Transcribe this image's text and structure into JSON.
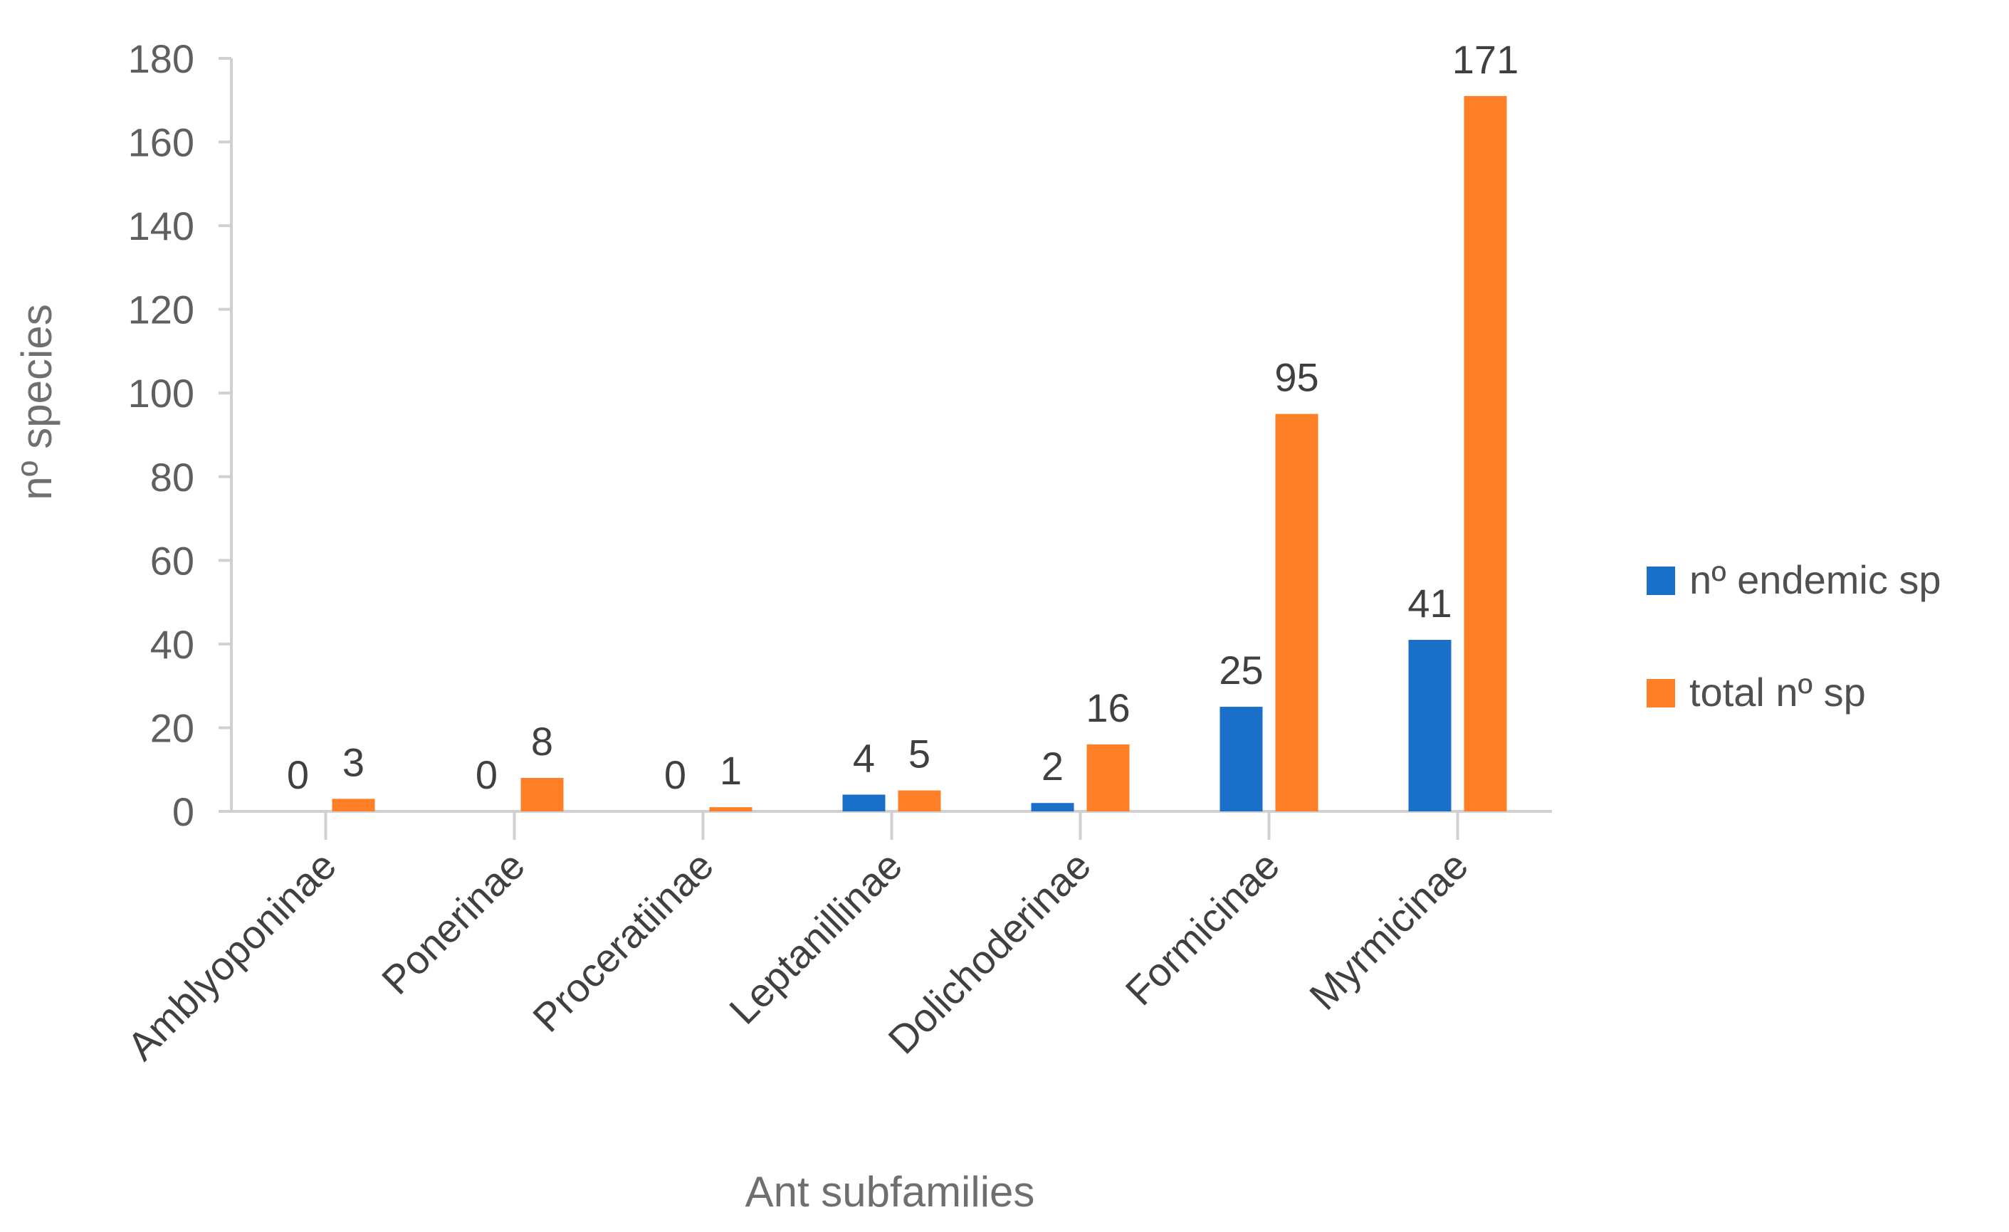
{
  "chart_data": {
    "type": "bar",
    "title": "",
    "xlabel": "Ant subfamilies",
    "ylabel": "nº species",
    "ylim": [
      0,
      180
    ],
    "yticks": [
      0,
      20,
      40,
      60,
      80,
      100,
      120,
      140,
      160,
      180
    ],
    "ytick_labels": [
      "0",
      "20",
      "40",
      "60",
      "80",
      "100",
      "120",
      "140",
      "160",
      "180"
    ],
    "categories": [
      "Amblyoponinae",
      "Ponerinae",
      "Proceratiinae",
      "Leptanillinae",
      "Dolichoderinae",
      "Formicinae",
      "Myrmicinae"
    ],
    "series": [
      {
        "name": "nº endemic sp",
        "color": "#1a70c8",
        "values": [
          0,
          0,
          0,
          4,
          2,
          25,
          41
        ],
        "labels": [
          "0",
          "0",
          "0",
          "4",
          "2",
          "25",
          "41"
        ]
      },
      {
        "name": "total nº sp",
        "color": "#ff7f27",
        "values": [
          3,
          8,
          1,
          5,
          16,
          95,
          171
        ],
        "labels": [
          "3",
          "8",
          "1",
          "5",
          "16",
          "95",
          "171"
        ]
      }
    ],
    "grid": false,
    "legend_position": "right"
  },
  "colors": {
    "axis": "#d0d0d0",
    "endemic": "#1a70c8",
    "total": "#ff7f27"
  }
}
